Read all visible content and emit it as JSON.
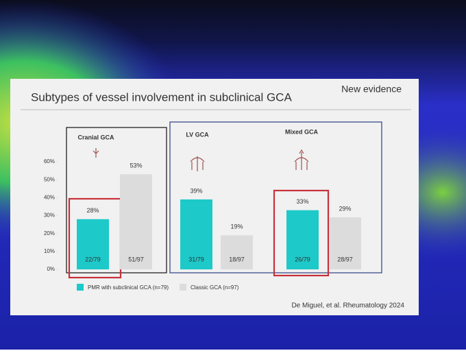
{
  "chart_data": {
    "type": "bar",
    "title": "Subtypes of vessel involvement in subclinical GCA",
    "tag": "New evidence",
    "source": "De Miguel, et al. Rheumatology 2024",
    "categories": [
      "Cranial GCA",
      "LV GCA",
      "Mixed GCA"
    ],
    "series": [
      {
        "name": "PMR with subclinical GCA (n=79)",
        "color": "#1ec9c9",
        "values": [
          28,
          39,
          33
        ],
        "value_labels": [
          "28%",
          "39%",
          "33%"
        ],
        "count_labels": [
          "22/79",
          "31/79",
          "26/79"
        ]
      },
      {
        "name": "Classic GCA (n=97)",
        "color": "#dcdcdc",
        "values": [
          53,
          19,
          29
        ],
        "value_labels": [
          "53%",
          "19%",
          "29%"
        ],
        "count_labels": [
          "51/97",
          "18/97",
          "28/97"
        ]
      }
    ],
    "ylim": [
      0,
      60
    ],
    "yticks": [
      {
        "value": 0,
        "label": "0%"
      },
      {
        "value": 10,
        "label": "10%"
      },
      {
        "value": 20,
        "label": "20%"
      },
      {
        "value": 30,
        "label": "30%"
      },
      {
        "value": 40,
        "label": "40%"
      },
      {
        "value": 50,
        "label": "50%"
      },
      {
        "value": 60,
        "label": "60%"
      }
    ]
  }
}
